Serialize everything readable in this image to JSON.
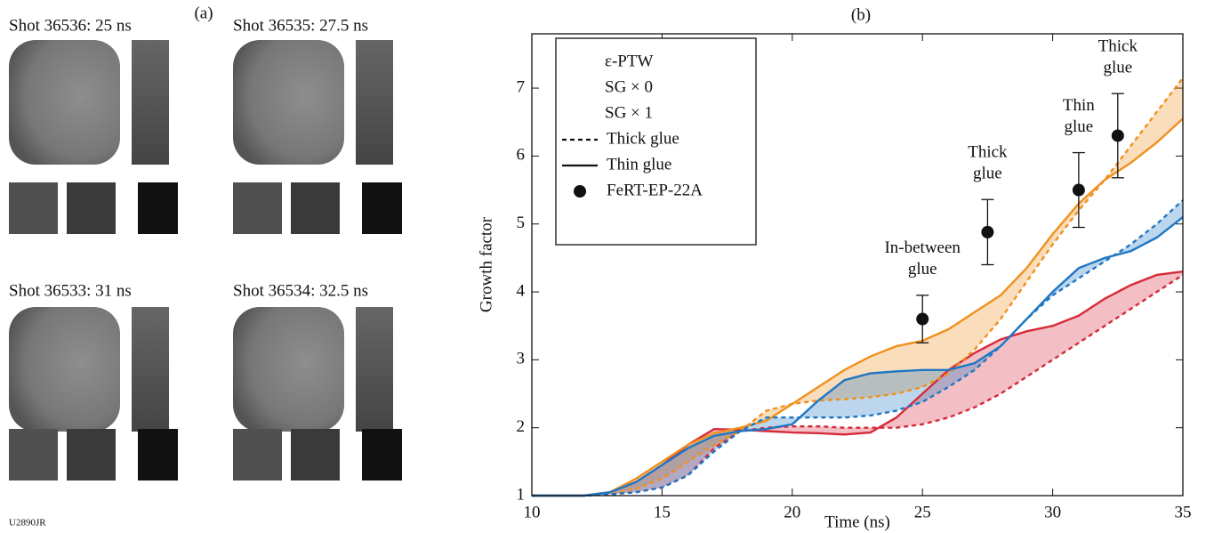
{
  "panel_a": {
    "label": "(a)",
    "shots": [
      "Shot 36536: 25 ns",
      "Shot 36535: 27.5 ns",
      "Shot 36533: 31 ns",
      "Shot 36534: 32.5 ns"
    ]
  },
  "figure_id": "U2890JR",
  "chart_data": {
    "type": "line",
    "title": "(b)",
    "xlabel": "Time (ns)",
    "ylabel": "Growth factor",
    "xlim": [
      10,
      35
    ],
    "xticks": [
      10,
      15,
      20,
      25,
      30,
      35
    ],
    "ylim": [
      1,
      7.8
    ],
    "yticks": [
      1,
      2,
      3,
      4,
      5,
      6,
      7
    ],
    "x": [
      10,
      11,
      12,
      13,
      14,
      15,
      16,
      17,
      18,
      19,
      20,
      21,
      22,
      23,
      24,
      25,
      26,
      27,
      28,
      29,
      30,
      31,
      32,
      33,
      34,
      35
    ],
    "line_styles": {
      "thick": {
        "label": "Thick glue",
        "dash": "5 4"
      },
      "thin": {
        "label": "Thin glue",
        "dash": "none"
      }
    },
    "series": [
      {
        "name": "ε-PTW",
        "color": "#d62b3a",
        "thick": [
          1,
          1,
          1,
          1.02,
          1.05,
          1.12,
          1.3,
          1.7,
          1.95,
          2.0,
          2.02,
          2.02,
          2.0,
          2.0,
          2.0,
          2.05,
          2.15,
          2.3,
          2.5,
          2.75,
          3.0,
          3.25,
          3.5,
          3.75,
          4.0,
          4.25
        ],
        "thin": [
          1,
          1,
          1,
          1.05,
          1.2,
          1.45,
          1.75,
          1.98,
          1.97,
          1.95,
          1.93,
          1.92,
          1.9,
          1.93,
          2.15,
          2.5,
          2.85,
          3.1,
          3.3,
          3.42,
          3.5,
          3.65,
          3.9,
          4.1,
          4.25,
          4.3
        ]
      },
      {
        "name": "SG × 0",
        "color": "#f0901e",
        "thick": [
          1,
          1,
          1,
          1.03,
          1.1,
          1.25,
          1.5,
          1.75,
          1.95,
          2.25,
          2.35,
          2.4,
          2.42,
          2.45,
          2.5,
          2.6,
          2.8,
          3.15,
          3.6,
          4.15,
          4.7,
          5.2,
          5.65,
          6.15,
          6.65,
          7.15
        ],
        "thin": [
          1,
          1,
          1,
          1.05,
          1.25,
          1.5,
          1.75,
          1.92,
          2.0,
          2.1,
          2.35,
          2.6,
          2.85,
          3.05,
          3.2,
          3.28,
          3.45,
          3.7,
          3.95,
          4.35,
          4.85,
          5.3,
          5.65,
          5.9,
          6.2,
          6.55
        ]
      },
      {
        "name": "SG × 1",
        "color": "#1f77c4",
        "thick": [
          1,
          1,
          1,
          1.02,
          1.05,
          1.12,
          1.3,
          1.65,
          1.95,
          2.15,
          2.15,
          2.15,
          2.15,
          2.18,
          2.25,
          2.38,
          2.6,
          2.85,
          3.2,
          3.6,
          3.95,
          4.2,
          4.45,
          4.7,
          5.0,
          5.35
        ],
        "thin": [
          1,
          1,
          1,
          1.05,
          1.2,
          1.45,
          1.7,
          1.88,
          1.95,
          1.98,
          2.05,
          2.4,
          2.7,
          2.8,
          2.83,
          2.85,
          2.85,
          2.95,
          3.2,
          3.6,
          4.0,
          4.35,
          4.5,
          4.6,
          4.8,
          5.1
        ]
      }
    ],
    "band_opacity": 0.3,
    "points": {
      "name": "FeRT-EP-22A",
      "color": "#111111",
      "x": [
        25,
        27.5,
        31,
        32.5
      ],
      "values": [
        3.6,
        4.88,
        5.5,
        6.3
      ],
      "errors": [
        0.35,
        0.48,
        0.55,
        0.62
      ],
      "labels": [
        [
          "In-between",
          "glue"
        ],
        [
          "Thick",
          "glue"
        ],
        [
          "Thin",
          "glue"
        ],
        [
          "Thick",
          "glue"
        ]
      ]
    }
  }
}
